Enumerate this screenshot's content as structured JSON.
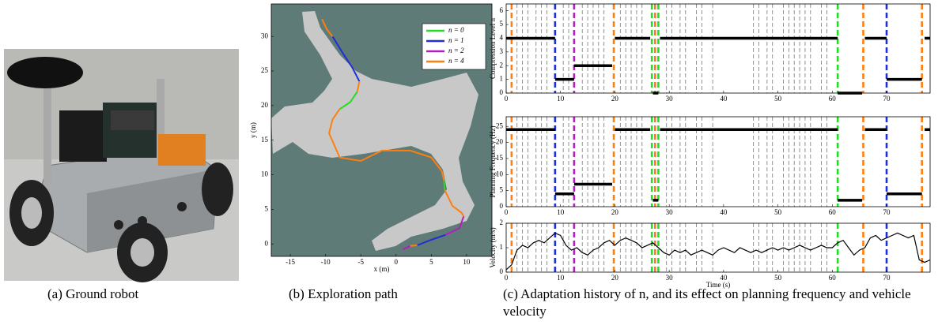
{
  "captions": [
    "(a)  Ground robot",
    "(b)  Exploration path",
    "(c)  Adaptation history of n, and its effect on planning frequency and vehicle velocity"
  ],
  "decisions": {
    "x": [
      1,
      9,
      12.5,
      19.8,
      26.8,
      27.4,
      28,
      61,
      65.7,
      70,
      76.5
    ],
    "colors": [
      "#ff7f0e",
      "#1f2fd8",
      "#b020c0",
      "#ff7f0e",
      "#22dd22",
      "#ff7f0e",
      "#22dd22",
      "#22dd22",
      "#ff7f0e",
      "#1f2fd8",
      "#ff7f0e"
    ]
  },
  "events": [
    2,
    3,
    4,
    5.5,
    6.5,
    7.5,
    10.5,
    11.5,
    14,
    15,
    16,
    17,
    18,
    21,
    22,
    23,
    24,
    25,
    29.5,
    30.5,
    32,
    33,
    35,
    36,
    38,
    45.5,
    46.5,
    48,
    49,
    51,
    52,
    53,
    54,
    55,
    56,
    58,
    59
  ],
  "chart_data": [
    {
      "type": "line",
      "xlabel": "x (m)",
      "ylabel": "y (m)",
      "background": "#5f7b77",
      "legend": "upper right",
      "xlim": [
        -17.7,
        13.6
      ],
      "xticks": [
        -15,
        -10,
        -5,
        0,
        5,
        10
      ],
      "ylim": [
        -1.8,
        34.7
      ],
      "yticks": [
        0,
        5,
        10,
        15,
        20,
        25,
        30
      ],
      "series": [
        {
          "name": "n = 0",
          "color": "#22dd22",
          "x": [
            -5.5,
            -6.5,
            -8,
            null,
            6.8,
            6.9
          ],
          "values": [
            22,
            20.5,
            19.5,
            null,
            9.2,
            7.8
          ]
        },
        {
          "name": "n = 1",
          "color": "#1f2fd8",
          "x": [
            -9,
            -7.5,
            -6.2,
            -5.2,
            null,
            7,
            5,
            3
          ],
          "values": [
            30,
            27.5,
            25.5,
            23.5,
            null,
            1.3,
            0.6,
            -0.2
          ]
        },
        {
          "name": "n = 2",
          "color": "#b020c0",
          "x": [
            9.6,
            9,
            7,
            null,
            2,
            1
          ],
          "values": [
            4,
            2.3,
            1.3,
            null,
            -0.3,
            -0.8
          ]
        },
        {
          "name": "n = 4",
          "color": "#ff7f0e",
          "x": [
            -10.5,
            -9.8,
            -9,
            null,
            -5.2,
            -5.5,
            null,
            -8,
            -9,
            -9.5,
            -8,
            -5,
            -2,
            2,
            5,
            6.5,
            6.8,
            null,
            6.9,
            8,
            9.3,
            9.6,
            null,
            3,
            2
          ],
          "values": [
            32.5,
            31,
            30,
            null,
            23.5,
            22,
            null,
            19.5,
            18,
            16,
            12.5,
            12,
            13.5,
            13.5,
            12.5,
            10.5,
            9.2,
            null,
            7.8,
            5.5,
            4.5,
            4,
            null,
            -0.2,
            -0.3
          ]
        }
      ]
    },
    {
      "type": "step",
      "ylabel": "Compression Level n",
      "color": "#000000",
      "xlim": [
        0,
        78
      ],
      "xticks": [
        0,
        10,
        20,
        30,
        40,
        50,
        60,
        70
      ],
      "ylim": [
        0,
        6.5
      ],
      "yticks": [
        0,
        1,
        2,
        3,
        4,
        5,
        6
      ],
      "x": [
        0,
        9,
        12.5,
        20,
        27,
        28.3,
        61,
        66,
        70,
        77
      ],
      "x_end": [
        9,
        12.5,
        19.5,
        26.5,
        28,
        61,
        65.5,
        70,
        76.5,
        78
      ],
      "values": [
        4,
        1,
        2,
        4,
        0,
        4,
        0,
        4,
        1,
        4
      ]
    },
    {
      "type": "step",
      "ylabel": "Planning Frequency (Hz)",
      "color": "#000000",
      "xlim": [
        0,
        78
      ],
      "xticks": [
        0,
        10,
        20,
        30,
        40,
        50,
        60,
        70
      ],
      "ylim": [
        0,
        28
      ],
      "yticks": [
        0,
        5,
        10,
        15,
        20,
        25
      ],
      "x": [
        0,
        9,
        12.5,
        20,
        27,
        28.3,
        61,
        66,
        70,
        77
      ],
      "x_end": [
        9,
        12.5,
        19.5,
        26.5,
        28,
        61,
        65.5,
        70,
        76.5,
        78
      ],
      "values": [
        24,
        4,
        7,
        24,
        2,
        24,
        2,
        24,
        4,
        24
      ]
    },
    {
      "type": "line",
      "ylabel": "Velocity (m/s)",
      "xlabel": "Time (s)",
      "xlim": [
        0,
        78
      ],
      "xticks": [
        0,
        10,
        20,
        30,
        40,
        50,
        60,
        70
      ],
      "ylim": [
        0,
        2
      ],
      "yticks": [
        0,
        1,
        2
      ],
      "series": [
        {
          "color": "#000000",
          "x": [
            0,
            1,
            2,
            3,
            4,
            5,
            6,
            7,
            8,
            9,
            10,
            11,
            12,
            13,
            14,
            15,
            16,
            17,
            18,
            19,
            20,
            21,
            22,
            23,
            24,
            25,
            26,
            27,
            28,
            29,
            30,
            31,
            32,
            33,
            34,
            35,
            36,
            37,
            38,
            39,
            40,
            41,
            42,
            43,
            44,
            45,
            46,
            47,
            48,
            49,
            50,
            51,
            52,
            53,
            54,
            55,
            56,
            57,
            58,
            59,
            60,
            61,
            62,
            63,
            64,
            65,
            66,
            67,
            68,
            69,
            70,
            71,
            72,
            73,
            74,
            75,
            76,
            77,
            78
          ],
          "values": [
            0.1,
            0.3,
            0.9,
            1.1,
            1.0,
            1.2,
            1.3,
            1.2,
            1.4,
            1.6,
            1.5,
            1.1,
            0.9,
            1.0,
            0.8,
            0.7,
            0.9,
            1.0,
            1.2,
            1.3,
            1.1,
            1.3,
            1.4,
            1.3,
            1.2,
            1.0,
            1.1,
            1.2,
            1.0,
            0.8,
            0.7,
            0.9,
            0.8,
            0.9,
            0.7,
            0.8,
            0.9,
            0.8,
            0.7,
            0.9,
            1.0,
            0.9,
            0.8,
            1.0,
            0.9,
            0.8,
            0.9,
            0.8,
            0.9,
            1.0,
            0.9,
            1.0,
            0.9,
            1.0,
            1.1,
            1.0,
            0.9,
            1.0,
            1.1,
            1.0,
            1.0,
            1.2,
            1.3,
            1.0,
            0.7,
            0.9,
            1.0,
            1.4,
            1.5,
            1.3,
            1.4,
            1.5,
            1.6,
            1.5,
            1.4,
            1.5,
            0.5,
            0.4,
            0.5
          ]
        }
      ]
    }
  ]
}
